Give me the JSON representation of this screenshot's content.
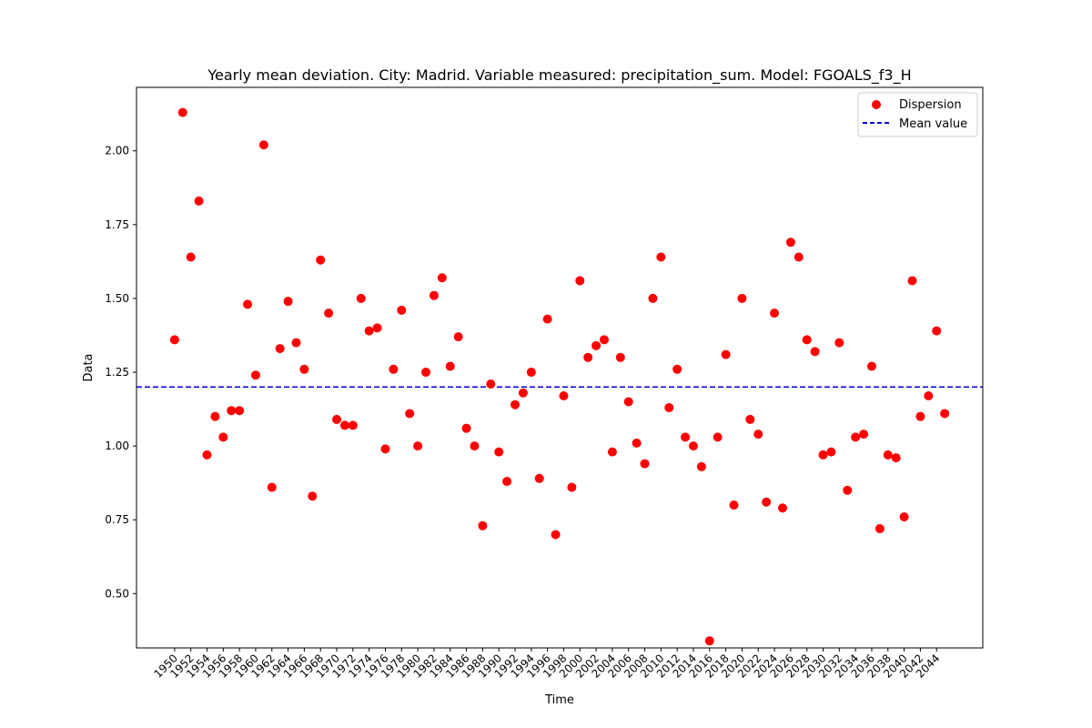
{
  "chart_data": {
    "type": "scatter",
    "title": "Yearly mean deviation. City: Madrid. Variable measured: precipitation_sum. Model: FGOALS_f3_H",
    "xlabel": "Time",
    "ylabel": "Data",
    "xlim": [
      1945.3,
      2049.7
    ],
    "ylim": [
      0.316,
      2.215
    ],
    "x_ticks": [
      1950,
      1952,
      1954,
      1956,
      1958,
      1960,
      1962,
      1964,
      1966,
      1968,
      1970,
      1972,
      1974,
      1976,
      1978,
      1980,
      1982,
      1984,
      1986,
      1988,
      1990,
      1992,
      1994,
      1996,
      1998,
      2000,
      2002,
      2004,
      2006,
      2008,
      2010,
      2012,
      2014,
      2016,
      2018,
      2020,
      2022,
      2024,
      2026,
      2028,
      2030,
      2032,
      2034,
      2036,
      2038,
      2040,
      2042,
      2044
    ],
    "y_ticks": [
      0.5,
      0.75,
      1.0,
      1.25,
      1.5,
      1.75,
      2.0
    ],
    "y_tick_labels": [
      "0.50",
      "0.75",
      "1.00",
      "1.25",
      "1.50",
      "1.75",
      "2.00"
    ],
    "grid": false,
    "legend_position": "top-right",
    "series": [
      {
        "name": "Dispersion",
        "kind": "scatter",
        "color": "#ff0000",
        "x": [
          1950,
          1951,
          1952,
          1953,
          1954,
          1955,
          1956,
          1957,
          1958,
          1959,
          1960,
          1961,
          1962,
          1963,
          1964,
          1965,
          1966,
          1967,
          1968,
          1969,
          1970,
          1971,
          1972,
          1973,
          1974,
          1975,
          1976,
          1977,
          1978,
          1979,
          1980,
          1981,
          1982,
          1983,
          1984,
          1985,
          1986,
          1987,
          1988,
          1989,
          1990,
          1991,
          1992,
          1993,
          1994,
          1995,
          1996,
          1997,
          1998,
          1999,
          2000,
          2001,
          2002,
          2003,
          2004,
          2005,
          2006,
          2007,
          2008,
          2009,
          2010,
          2011,
          2012,
          2013,
          2014,
          2015,
          2016,
          2017,
          2018,
          2019,
          2020,
          2021,
          2022,
          2023,
          2024,
          2025,
          2026,
          2027,
          2028,
          2029,
          2030,
          2031,
          2032,
          2033,
          2034,
          2035,
          2036,
          2037,
          2038,
          2039,
          2040,
          2041,
          2042,
          2043,
          2044,
          2045
        ],
        "y": [
          1.36,
          2.13,
          1.64,
          1.83,
          0.97,
          1.1,
          1.03,
          1.12,
          1.12,
          1.48,
          1.24,
          2.02,
          0.86,
          1.33,
          1.49,
          1.35,
          1.26,
          0.83,
          1.63,
          1.45,
          1.09,
          1.07,
          1.07,
          1.5,
          1.39,
          1.4,
          0.99,
          1.26,
          1.46,
          1.11,
          1.0,
          1.25,
          1.51,
          1.57,
          1.27,
          1.37,
          1.06,
          1.0,
          0.73,
          1.21,
          0.98,
          0.88,
          1.14,
          1.18,
          1.25,
          0.89,
          1.43,
          0.7,
          1.17,
          0.86,
          1.56,
          1.3,
          1.34,
          1.36,
          0.98,
          1.3,
          1.15,
          1.01,
          0.94,
          1.5,
          1.64,
          1.13,
          1.26,
          1.03,
          1.0,
          0.93,
          0.34,
          1.03,
          1.31,
          0.8,
          1.5,
          1.09,
          1.04,
          0.81,
          1.45,
          0.79,
          1.69,
          1.64,
          1.36,
          1.32,
          0.97,
          0.98,
          1.35,
          0.85,
          1.03,
          1.04,
          1.27,
          0.72,
          0.97,
          0.96,
          0.76,
          1.56,
          1.1,
          1.17,
          1.39,
          1.11
        ]
      },
      {
        "name": "Mean value",
        "kind": "hline",
        "color": "#0000cd",
        "y": 1.2
      }
    ]
  }
}
